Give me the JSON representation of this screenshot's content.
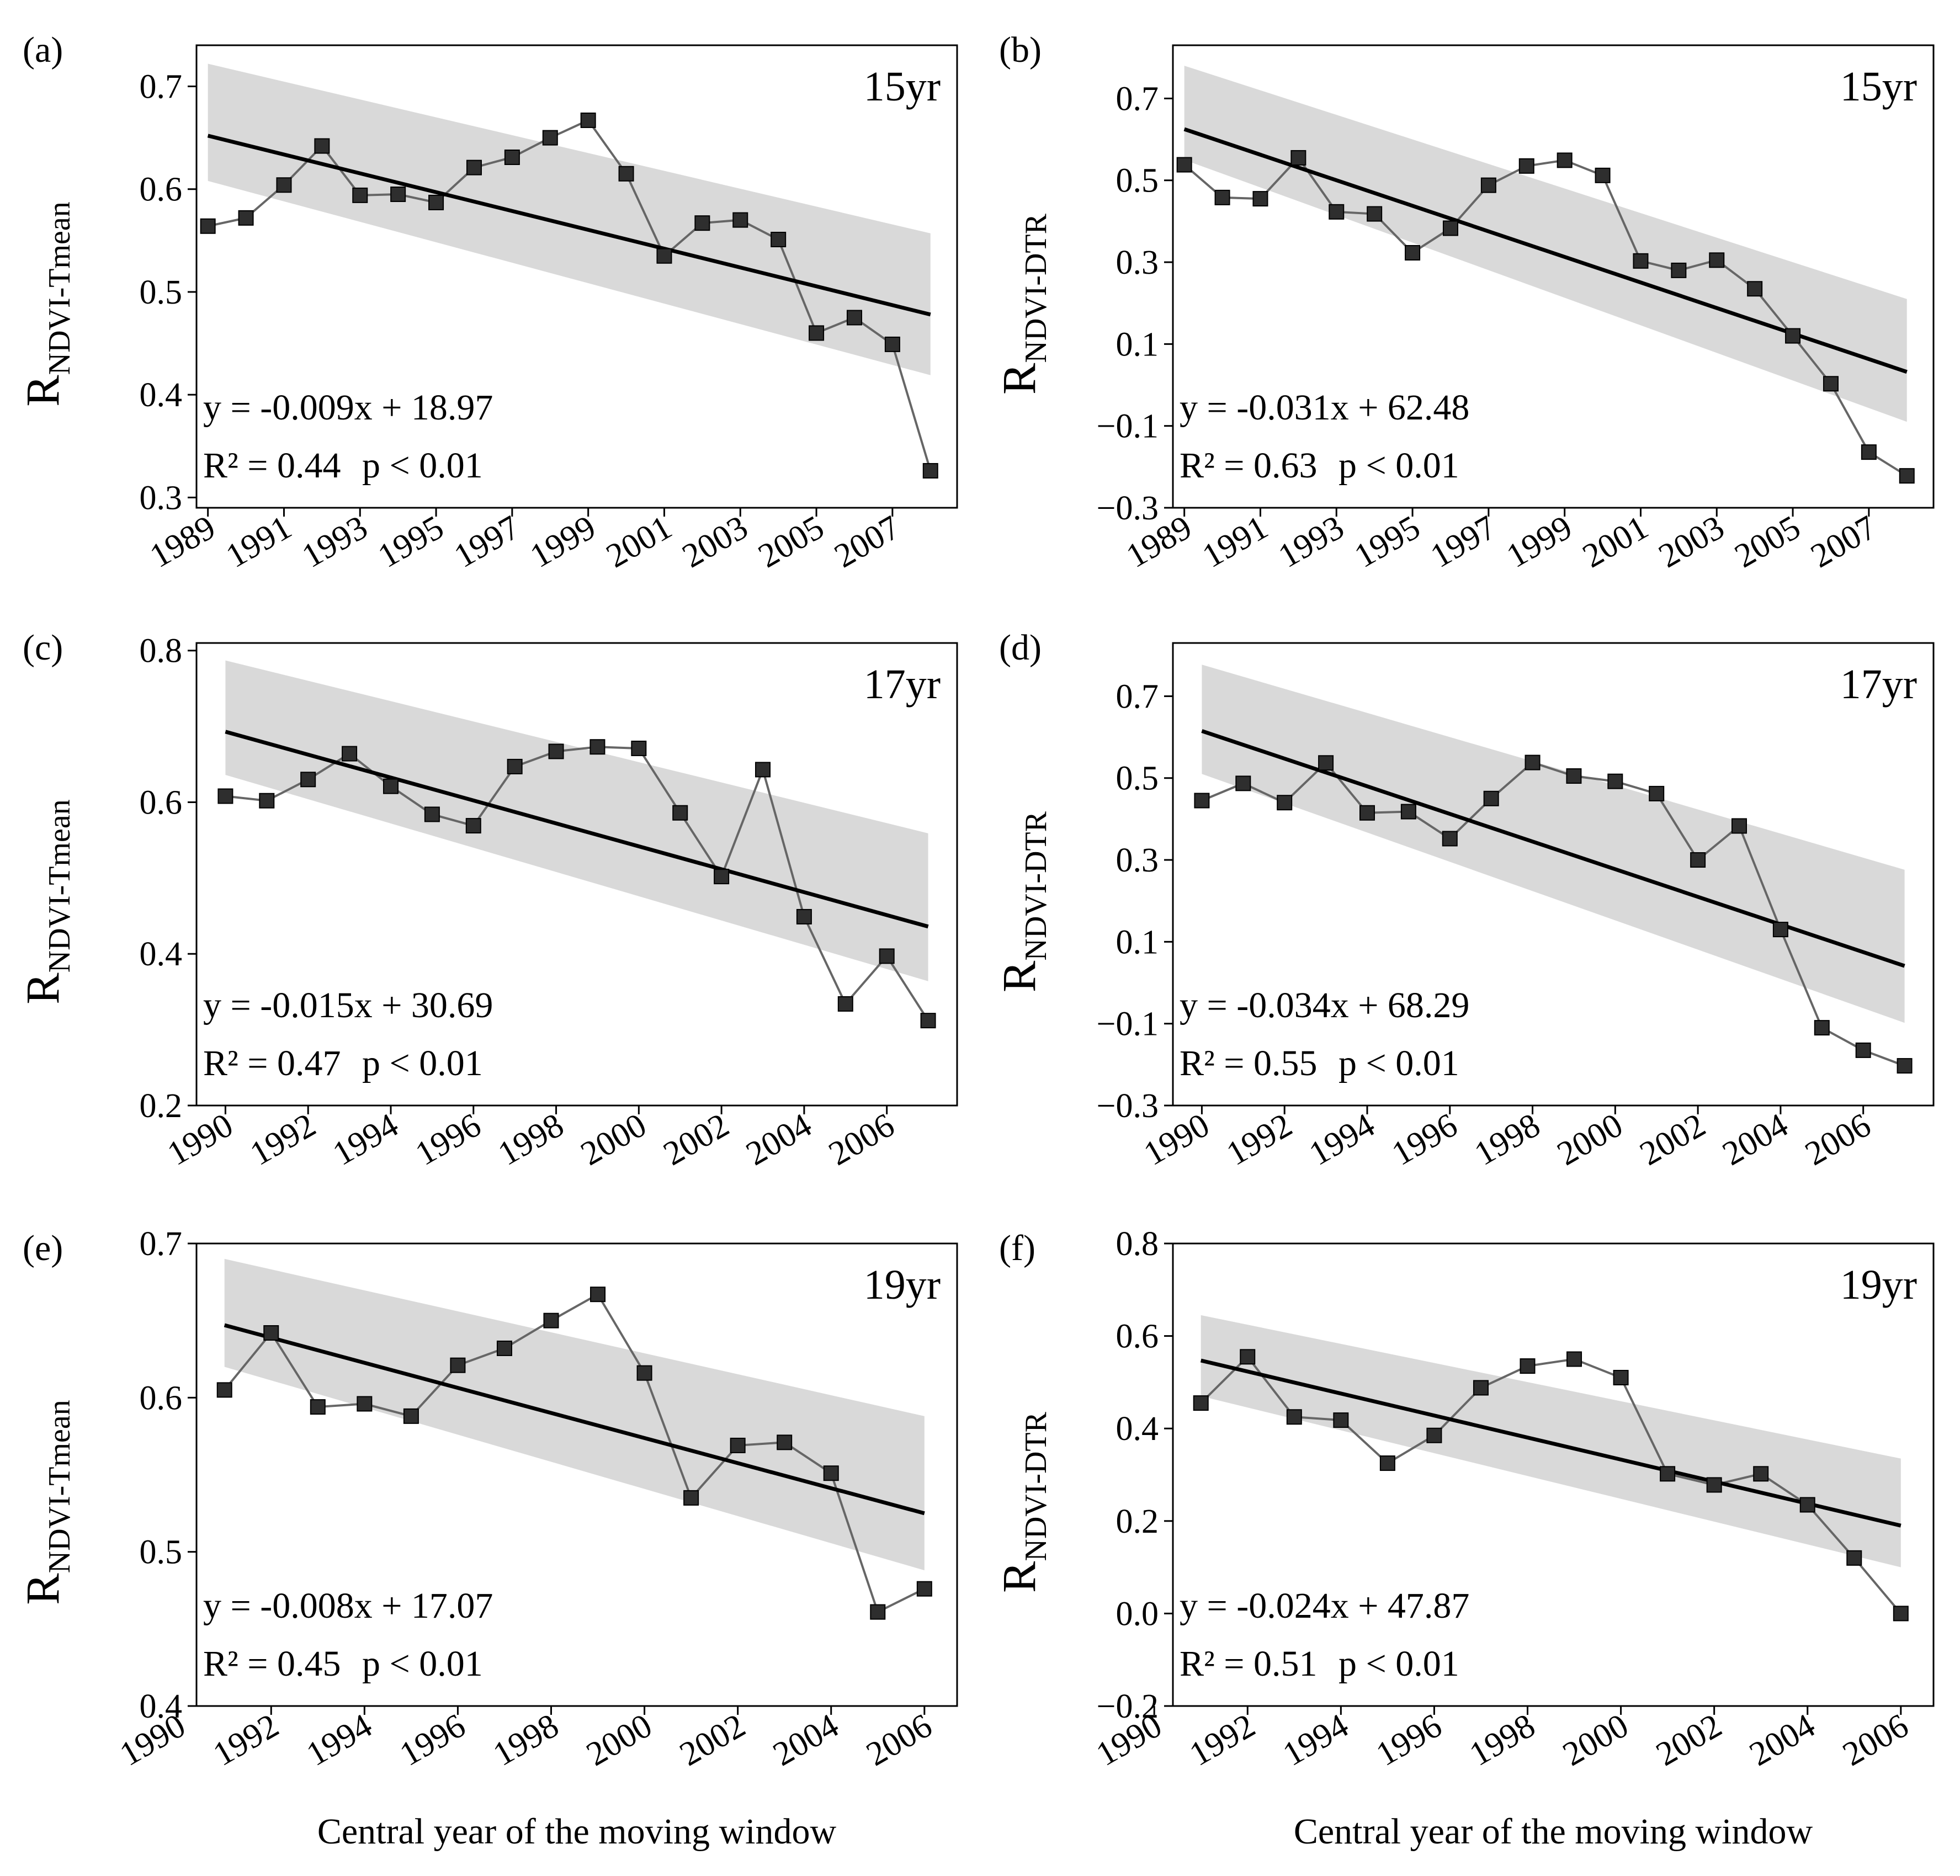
{
  "figure": {
    "xlabel": "Central year of the moving window",
    "ylabel_main": "R",
    "colors": {
      "band": "#d9d9d9",
      "line": "#000000",
      "series": "#666666",
      "marker": "#2e2e2e"
    }
  },
  "chart_data": [
    {
      "type": "line",
      "panel": "(a)",
      "window": "15yr",
      "ylabel_sub": "NDVI-Tmean",
      "x": [
        1989,
        1990,
        1991,
        1992,
        1993,
        1994,
        1995,
        1996,
        1997,
        1998,
        1999,
        2000,
        2001,
        2002,
        2003,
        2004,
        2005,
        2006,
        2007,
        2008
      ],
      "values": [
        0.564,
        0.572,
        0.604,
        0.642,
        0.594,
        0.595,
        0.587,
        0.621,
        0.631,
        0.65,
        0.667,
        0.615,
        0.535,
        0.567,
        0.57,
        0.551,
        0.46,
        0.475,
        0.449,
        0.326
      ],
      "xticks": [
        1989,
        1991,
        1993,
        1995,
        1997,
        1999,
        2001,
        2003,
        2005,
        2007
      ],
      "xtick_labels": [
        "1989",
        "1991",
        "1993",
        "1995",
        "1997",
        "1999",
        "2001",
        "2003",
        "2005",
        "2007"
      ],
      "yticks": [
        0.3,
        0.4,
        0.5,
        0.6,
        0.7
      ],
      "ytick_labels": [
        "0.3",
        "0.4",
        "0.5",
        "0.6",
        "0.7"
      ],
      "xlim": [
        1988.7,
        2008.7
      ],
      "ylim": [
        0.29,
        0.74
      ],
      "fit": {
        "x": [
          1989,
          2008
        ],
        "y": [
          0.652,
          0.478
        ]
      },
      "band": {
        "x": [
          1989,
          2008
        ],
        "upper": [
          0.722,
          0.557
        ],
        "lower": [
          0.608,
          0.419
        ]
      },
      "equation": "y = -0.009x + 18.97",
      "r2_text": "R² = 0.44",
      "p_text": "p < 0.01"
    },
    {
      "type": "line",
      "panel": "(b)",
      "window": "15yr",
      "ylabel_sub": "NDVI-DTR",
      "x": [
        1989,
        1990,
        1991,
        1992,
        1993,
        1994,
        1995,
        1996,
        1997,
        1998,
        1999,
        2000,
        2001,
        2002,
        2003,
        2004,
        2005,
        2006,
        2007,
        2008
      ],
      "values": [
        0.538,
        0.458,
        0.455,
        0.555,
        0.423,
        0.418,
        0.323,
        0.383,
        0.488,
        0.535,
        0.549,
        0.512,
        0.303,
        0.28,
        0.305,
        0.235,
        0.12,
        0.003,
        -0.164,
        -0.222
      ],
      "xticks": [
        1989,
        1991,
        1993,
        1995,
        1997,
        1999,
        2001,
        2003,
        2005,
        2007
      ],
      "xtick_labels": [
        "1989",
        "1991",
        "1993",
        "1995",
        "1997",
        "1999",
        "2001",
        "2003",
        "2005",
        "2007"
      ],
      "yticks": [
        -0.3,
        -0.1,
        0.1,
        0.3,
        0.5,
        0.7
      ],
      "ytick_labels": [
        "−0.3",
        "−0.1",
        "0.1",
        "0.3",
        "0.5",
        "0.7"
      ],
      "xlim": [
        1988.7,
        2008.7
      ],
      "ylim": [
        -0.3,
        0.83
      ],
      "fit": {
        "x": [
          1989,
          2008
        ],
        "y": [
          0.625,
          0.032
        ]
      },
      "band": {
        "x": [
          1989,
          2008
        ],
        "upper": [
          0.78,
          0.21
        ],
        "lower": [
          0.55,
          -0.09
        ]
      },
      "equation": "y = -0.031x + 62.48",
      "r2_text": "R² = 0.63",
      "p_text": "p < 0.01"
    },
    {
      "type": "line",
      "panel": "(c)",
      "window": "17yr",
      "ylabel_sub": "NDVI-Tmean",
      "x": [
        1990,
        1991,
        1992,
        1993,
        1994,
        1995,
        1996,
        1997,
        1998,
        1999,
        2000,
        2001,
        2002,
        2003,
        2004,
        2005,
        2006,
        2007
      ],
      "values": [
        0.608,
        0.602,
        0.63,
        0.664,
        0.621,
        0.584,
        0.569,
        0.647,
        0.667,
        0.673,
        0.671,
        0.586,
        0.502,
        0.643,
        0.449,
        0.334,
        0.397,
        0.312
      ],
      "xticks": [
        1990,
        1992,
        1994,
        1996,
        1998,
        2000,
        2002,
        2004,
        2006
      ],
      "xtick_labels": [
        "1990",
        "1992",
        "1994",
        "1996",
        "1998",
        "2000",
        "2002",
        "2004",
        "2006"
      ],
      "yticks": [
        0.2,
        0.4,
        0.6,
        0.8
      ],
      "ytick_labels": [
        "0.2",
        "0.4",
        "0.6",
        "0.8"
      ],
      "xlim": [
        1989.3,
        2007.7
      ],
      "ylim": [
        0.2,
        0.81
      ],
      "fit": {
        "x": [
          1990,
          2007
        ],
        "y": [
          0.693,
          0.436
        ]
      },
      "band": {
        "x": [
          1990,
          2007
        ],
        "upper": [
          0.787,
          0.559
        ],
        "lower": [
          0.636,
          0.364
        ]
      },
      "equation": "y = -0.015x + 30.69",
      "r2_text": "R² = 0.47",
      "p_text": "p < 0.01"
    },
    {
      "type": "line",
      "panel": "(d)",
      "window": "17yr",
      "ylabel_sub": "NDVI-DTR",
      "x": [
        1990,
        1991,
        1992,
        1993,
        1994,
        1995,
        1996,
        1997,
        1998,
        1999,
        2000,
        2001,
        2002,
        2003,
        2004,
        2005,
        2006,
        2007
      ],
      "values": [
        0.445,
        0.487,
        0.44,
        0.537,
        0.415,
        0.418,
        0.352,
        0.45,
        0.538,
        0.505,
        0.492,
        0.462,
        0.3,
        0.383,
        0.13,
        -0.11,
        -0.165,
        -0.203
      ],
      "xticks": [
        1990,
        1992,
        1994,
        1996,
        1998,
        2000,
        2002,
        2004,
        2006
      ],
      "xtick_labels": [
        "1990",
        "1992",
        "1994",
        "1996",
        "1998",
        "2000",
        "2002",
        "2004",
        "2006"
      ],
      "yticks": [
        -0.3,
        -0.1,
        0.1,
        0.3,
        0.5,
        0.7
      ],
      "ytick_labels": [
        "−0.3",
        "−0.1",
        "0.1",
        "0.3",
        "0.5",
        "0.7"
      ],
      "xlim": [
        1989.3,
        2007.7
      ],
      "ylim": [
        -0.3,
        0.83
      ],
      "fit": {
        "x": [
          1990,
          2007
        ],
        "y": [
          0.615,
          0.041
        ]
      },
      "band": {
        "x": [
          1990,
          2007
        ],
        "upper": [
          0.777,
          0.276
        ],
        "lower": [
          0.51,
          -0.098
        ]
      },
      "equation": "y = -0.034x + 68.29",
      "r2_text": "R² = 0.55",
      "p_text": "p < 0.01"
    },
    {
      "type": "line",
      "panel": "(e)",
      "window": "19yr",
      "ylabel_sub": "NDVI-Tmean",
      "x": [
        1991,
        1992,
        1993,
        1994,
        1995,
        1996,
        1997,
        1998,
        1999,
        2000,
        2001,
        2002,
        2003,
        2004,
        2005,
        2006
      ],
      "values": [
        0.605,
        0.642,
        0.594,
        0.596,
        0.588,
        0.621,
        0.632,
        0.65,
        0.667,
        0.616,
        0.535,
        0.569,
        0.571,
        0.551,
        0.461,
        0.476
      ],
      "xticks": [
        1990,
        1992,
        1994,
        1996,
        1998,
        2000,
        2002,
        2004,
        2006
      ],
      "xtick_labels": [
        "1990",
        "1992",
        "1994",
        "1996",
        "1998",
        "2000",
        "2002",
        "2004",
        "2006"
      ],
      "yticks": [
        0.4,
        0.5,
        0.6,
        0.7
      ],
      "ytick_labels": [
        "0.4",
        "0.5",
        "0.6",
        "0.7"
      ],
      "xlim": [
        1990.4,
        2006.7
      ],
      "ylim": [
        0.4,
        0.7
      ],
      "fit": {
        "x": [
          1991,
          2006
        ],
        "y": [
          0.647,
          0.525
        ]
      },
      "band": {
        "x": [
          1991,
          2006
        ],
        "upper": [
          0.69,
          0.588
        ],
        "lower": [
          0.62,
          0.488
        ]
      },
      "equation": "y = -0.008x + 17.07",
      "r2_text": "R² = 0.45",
      "p_text": "p < 0.01"
    },
    {
      "type": "line",
      "panel": "(f)",
      "window": "19yr",
      "ylabel_sub": "NDVI-DTR",
      "x": [
        1991,
        1992,
        1993,
        1994,
        1995,
        1996,
        1997,
        1998,
        1999,
        2000,
        2001,
        2002,
        2003,
        2004,
        2005,
        2006
      ],
      "values": [
        0.455,
        0.555,
        0.425,
        0.418,
        0.325,
        0.385,
        0.488,
        0.535,
        0.55,
        0.51,
        0.302,
        0.278,
        0.302,
        0.235,
        0.12,
        0.0
      ],
      "xticks": [
        1990,
        1992,
        1994,
        1996,
        1998,
        2000,
        2002,
        2004,
        2006
      ],
      "xtick_labels": [
        "1990",
        "1992",
        "1994",
        "1996",
        "1998",
        "2000",
        "2002",
        "2004",
        "2006"
      ],
      "yticks": [
        -0.2,
        0.0,
        0.2,
        0.4,
        0.6,
        0.8
      ],
      "ytick_labels": [
        "−0.2",
        "0.0",
        "0.2",
        "0.4",
        "0.6",
        "0.8"
      ],
      "xlim": [
        1990.4,
        2006.7
      ],
      "ylim": [
        -0.2,
        0.8
      ],
      "fit": {
        "x": [
          1991,
          2006
        ],
        "y": [
          0.547,
          0.19
        ]
      },
      "band": {
        "x": [
          1991,
          2006
        ],
        "upper": [
          0.645,
          0.335
        ],
        "lower": [
          0.47,
          0.1
        ]
      },
      "equation": "y = -0.024x + 47.87",
      "r2_text": "R² = 0.51",
      "p_text": "p < 0.01"
    }
  ]
}
